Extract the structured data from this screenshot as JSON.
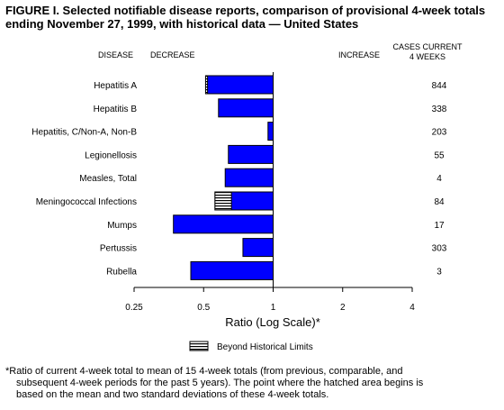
{
  "title": {
    "line1": "FIGURE I. Selected notifiable disease reports, comparison of provisional 4-week totals",
    "line2": "ending November 27, 1999, with historical data — United States"
  },
  "headers": {
    "disease": "DISEASE",
    "decrease": "DECREASE",
    "increase": "INCREASE",
    "cases_line1": "CASES CURRENT",
    "cases_line2": "4 WEEKS"
  },
  "chart_data": {
    "type": "bar",
    "orientation": "horizontal",
    "x_scale": "log",
    "baseline": 1,
    "xlim": [
      0.25,
      4
    ],
    "xticks": [
      0.25,
      0.5,
      1,
      2,
      4
    ],
    "xtick_labels": [
      "0.25",
      "0.5",
      "1",
      "2",
      "4"
    ],
    "xlabel": "Ratio (Log Scale)*",
    "categories": [
      "Hepatitis A",
      "Hepatitis B",
      "Hepatitis, C/Non-A, Non-B",
      "Legionellosis",
      "Measles, Total",
      "Meningococcal Infections",
      "Mumps",
      "Pertussis",
      "Rubella"
    ],
    "values": [
      0.51,
      0.58,
      0.95,
      0.64,
      0.62,
      0.56,
      0.37,
      0.74,
      0.44
    ],
    "cases_current_4_weeks": [
      "844",
      "338",
      "203",
      "55",
      "4",
      "84",
      "17",
      "303",
      "3"
    ],
    "beyond_historical_limits": [
      {
        "category": "Hepatitis A",
        "from": 0.51,
        "to": 0.52
      },
      {
        "category": "Meningococcal Infections",
        "from": 0.56,
        "to": 0.66
      }
    ],
    "legend": {
      "label": "Beyond Historical Limits",
      "position": "bottom"
    },
    "bar_color": "#0000ff",
    "grid": false
  },
  "footnote": {
    "line1": "*Ratio of current 4-week total to mean of 15 4-week totals (from previous, comparable, and",
    "line2": "subsequent 4-week periods for the past 5 years). The point where the hatched area begins is",
    "line3": "based on the mean and two standard deviations of these 4-week totals."
  }
}
